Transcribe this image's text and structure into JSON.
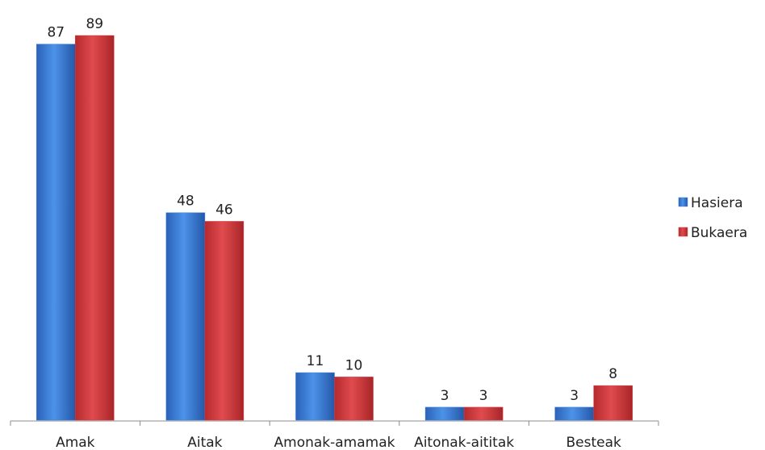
{
  "chart_data": {
    "type": "bar",
    "categories": [
      "Amak",
      "Aitak",
      "Amonak-amamak",
      "Aitonak-aititak",
      "Besteak"
    ],
    "series": [
      {
        "name": "Hasiera",
        "values": [
          87,
          48,
          11,
          3,
          3
        ],
        "color": "#3c7fd8"
      },
      {
        "name": "Bukaera",
        "values": [
          89,
          46,
          10,
          3,
          8
        ],
        "color": "#d63a3d"
      }
    ],
    "ylim": [
      0,
      100
    ],
    "grid": false,
    "legend": "right",
    "title": "",
    "xlabel": "",
    "ylabel": ""
  }
}
